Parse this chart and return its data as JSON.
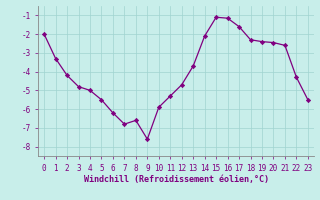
{
  "x": [
    0,
    1,
    2,
    3,
    4,
    5,
    6,
    7,
    8,
    9,
    10,
    11,
    12,
    13,
    14,
    15,
    16,
    17,
    18,
    19,
    20,
    21,
    22,
    23
  ],
  "y": [
    -2.0,
    -3.3,
    -4.2,
    -4.8,
    -5.0,
    -5.5,
    -6.2,
    -6.8,
    -6.6,
    -7.6,
    -5.9,
    -5.3,
    -4.7,
    -3.7,
    -2.1,
    -1.1,
    -1.15,
    -1.6,
    -2.3,
    -2.4,
    -2.45,
    -2.6,
    -4.3,
    -5.5
  ],
  "line_color": "#800080",
  "marker": "D",
  "markersize": 2.2,
  "linewidth": 0.9,
  "xlabel": "Windchill (Refroidissement éolien,°C)",
  "ylim": [
    -8.5,
    -0.5
  ],
  "xlim": [
    -0.5,
    23.5
  ],
  "yticks": [
    -8,
    -7,
    -6,
    -5,
    -4,
    -3,
    -2,
    -1
  ],
  "xticks": [
    0,
    1,
    2,
    3,
    4,
    5,
    6,
    7,
    8,
    9,
    10,
    11,
    12,
    13,
    14,
    15,
    16,
    17,
    18,
    19,
    20,
    21,
    22,
    23
  ],
  "bg_color": "#c8eeea",
  "grid_color": "#a0d4d0",
  "tick_color": "#800080",
  "label_fontsize": 5.5,
  "xlabel_fontsize": 6.0
}
